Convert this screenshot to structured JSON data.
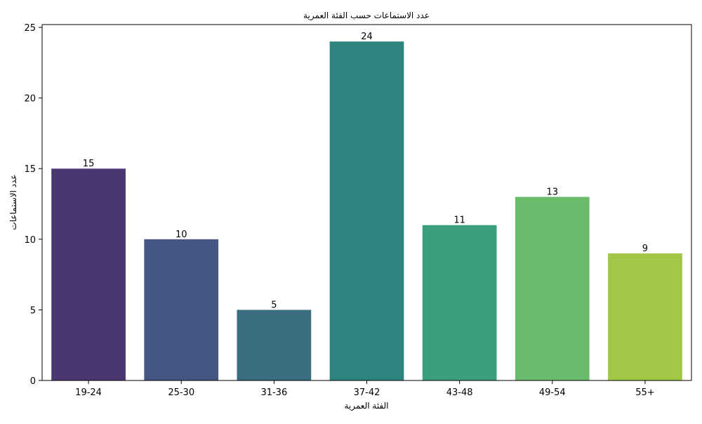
{
  "chart_data": {
    "type": "bar",
    "title": "عدد الاستماعات حسب الفئة العمرية",
    "xlabel": "الفئة العمرية",
    "ylabel": "عدد الاستماعات",
    "categories": [
      "19-24",
      "25-30",
      "31-36",
      "37-42",
      "43-48",
      "49-54",
      "55+"
    ],
    "values": [
      15,
      10,
      5,
      24,
      11,
      13,
      9
    ],
    "colors": [
      "#4a3671",
      "#445782",
      "#3a6d80",
      "#2e847e",
      "#3b9f7c",
      "#6abb6b",
      "#a2c746"
    ],
    "ylim": [
      0,
      25.2
    ],
    "yticks": [
      0,
      5,
      10,
      15,
      20,
      25
    ],
    "grid": false,
    "legend": "none"
  }
}
